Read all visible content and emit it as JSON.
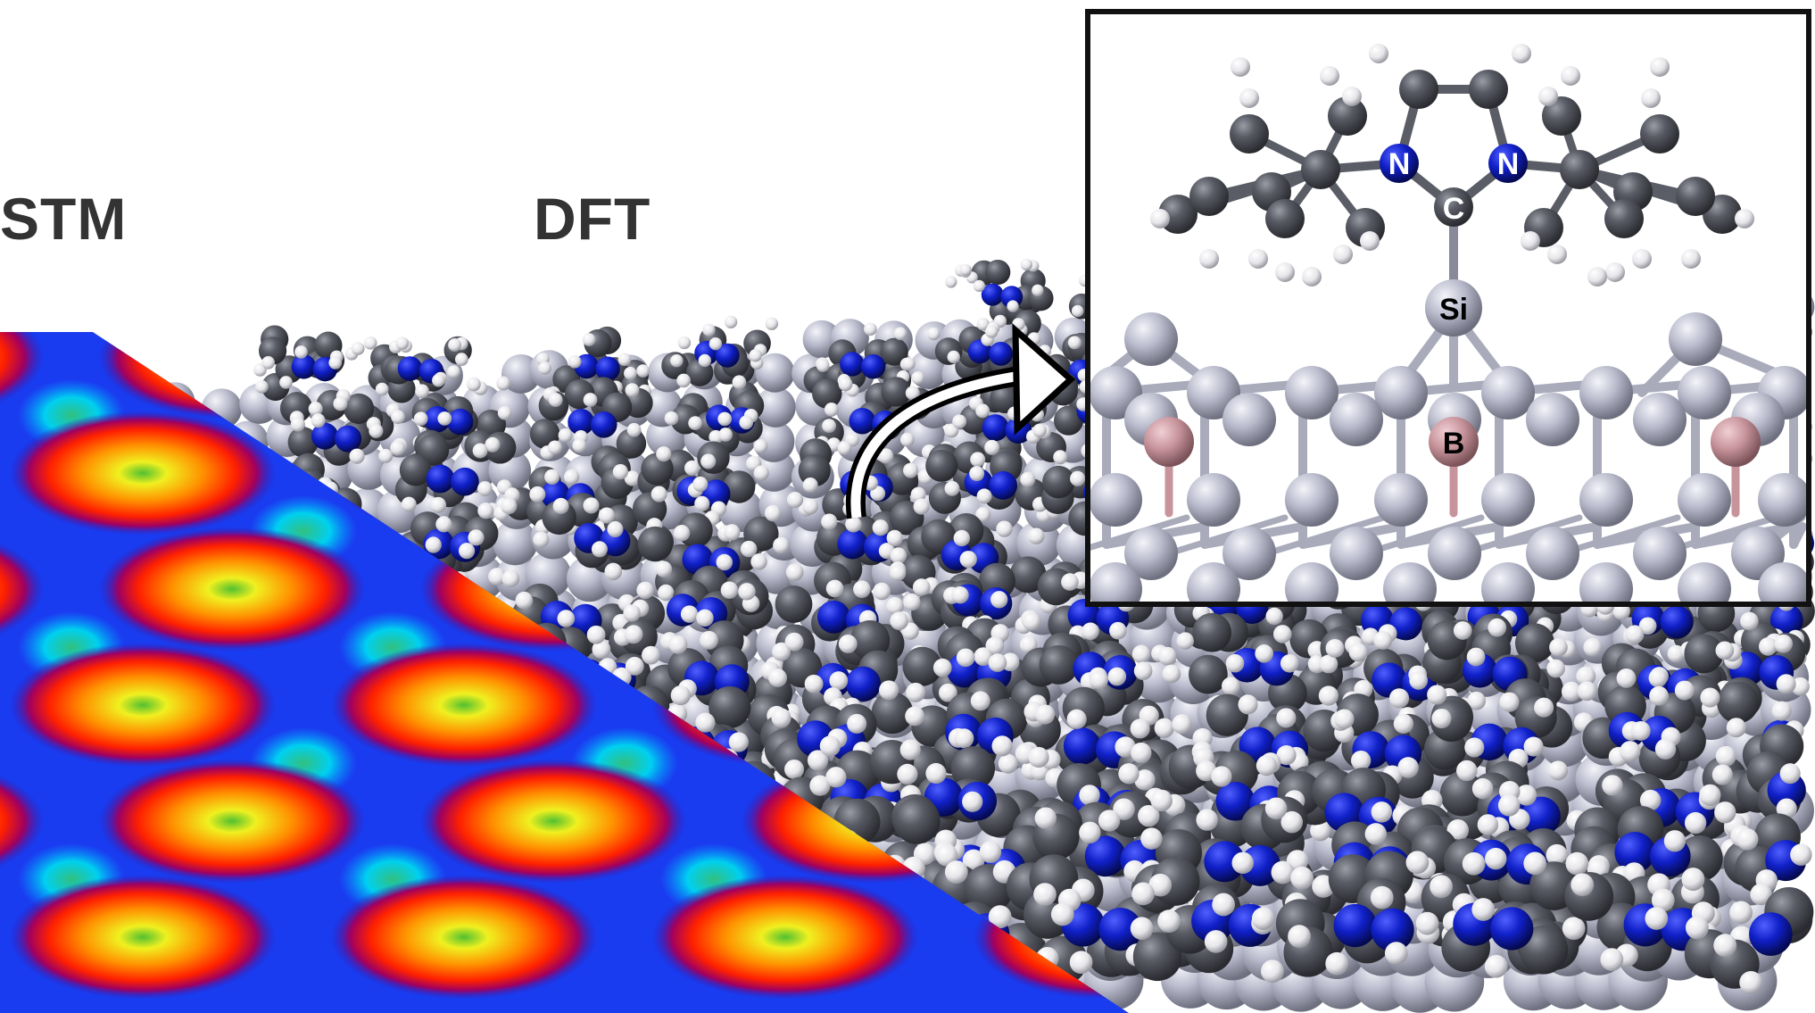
{
  "labels": {
    "stm": "STM",
    "dft": "DFT"
  },
  "inset": {
    "atom_labels": {
      "n_left": "N",
      "n_right": "N",
      "carbene_c": "C",
      "silicon": "Si",
      "boron": "B"
    }
  },
  "colors": {
    "carbon": "#5a5c66",
    "hydrogen": "#eeeef2",
    "nitrogen": "#1020c8",
    "silicon": "#b8bacb",
    "boron": "#c8949c",
    "frame": "#111111"
  }
}
